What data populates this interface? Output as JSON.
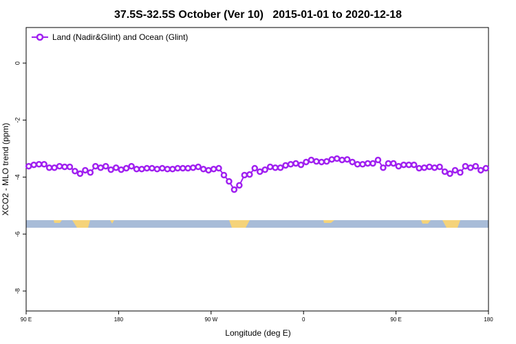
{
  "chart_data": {
    "type": "line",
    "title": "37.5S-32.5S October (Ver 10)   2015-01-01 to 2020-12-18",
    "xlabel": "Longitude (deg E)",
    "ylabel": "XCO2 - MLO trend (ppm)",
    "xlim": [
      90,
      540
    ],
    "ylim": [
      -8.7,
      1.25
    ],
    "xticks": [
      {
        "value": 90,
        "label": "90 E"
      },
      {
        "value": 180,
        "label": "180"
      },
      {
        "value": 270,
        "label": "90 W"
      },
      {
        "value": 360,
        "label": "0"
      },
      {
        "value": 450,
        "label": "90 E"
      },
      {
        "value": 540,
        "label": "180"
      }
    ],
    "yticks": [
      0,
      -2,
      -4,
      -6,
      -8
    ],
    "legend": "top-left",
    "x": [
      92.5,
      97.5,
      102.5,
      107.5,
      112.5,
      117.5,
      122.5,
      127.5,
      132.5,
      137.5,
      142.5,
      147.5,
      152.5,
      157.5,
      162.5,
      167.5,
      172.5,
      177.5,
      182.5,
      187.5,
      192.5,
      197.5,
      202.5,
      207.5,
      212.5,
      217.5,
      222.5,
      227.5,
      232.5,
      237.5,
      242.5,
      247.5,
      252.5,
      257.5,
      262.5,
      267.5,
      272.5,
      277.5,
      282.5,
      287.5,
      292.5,
      297.5,
      302.5,
      307.5,
      312.5,
      317.5,
      322.5,
      327.5,
      332.5,
      337.5,
      342.5,
      347.5,
      352.5,
      357.5,
      362.5,
      367.5,
      372.5,
      377.5,
      382.5,
      387.5,
      392.5,
      397.5,
      402.5,
      407.5,
      412.5,
      417.5,
      422.5,
      427.5,
      432.5,
      437.5,
      442.5,
      447.5,
      452.5,
      457.5,
      462.5,
      467.5,
      472.5,
      477.5,
      482.5,
      487.5,
      492.5,
      497.5,
      502.5,
      507.5,
      512.5,
      517.5,
      522.5,
      527.5,
      532.5,
      537.5
    ],
    "series": [
      {
        "name": "Land (Nadir&Glint) and Ocean (Glint)",
        "color": "#a020f0",
        "values": [
          -3.62,
          -3.57,
          -3.55,
          -3.55,
          -3.67,
          -3.67,
          -3.62,
          -3.64,
          -3.64,
          -3.79,
          -3.88,
          -3.76,
          -3.84,
          -3.62,
          -3.67,
          -3.62,
          -3.74,
          -3.67,
          -3.74,
          -3.69,
          -3.62,
          -3.72,
          -3.72,
          -3.69,
          -3.69,
          -3.72,
          -3.69,
          -3.72,
          -3.72,
          -3.69,
          -3.69,
          -3.69,
          -3.67,
          -3.64,
          -3.72,
          -3.76,
          -3.72,
          -3.69,
          -3.93,
          -4.15,
          -4.44,
          -4.29,
          -3.93,
          -3.91,
          -3.69,
          -3.81,
          -3.74,
          -3.64,
          -3.67,
          -3.67,
          -3.59,
          -3.55,
          -3.52,
          -3.57,
          -3.47,
          -3.4,
          -3.45,
          -3.47,
          -3.45,
          -3.38,
          -3.35,
          -3.4,
          -3.38,
          -3.47,
          -3.55,
          -3.55,
          -3.52,
          -3.52,
          -3.4,
          -3.67,
          -3.52,
          -3.52,
          -3.62,
          -3.57,
          -3.57,
          -3.57,
          -3.69,
          -3.67,
          -3.64,
          -3.67,
          -3.64,
          -3.81,
          -3.88,
          -3.76,
          -3.84,
          -3.62,
          -3.67,
          -3.62,
          -3.76,
          -3.69
        ]
      }
    ]
  }
}
